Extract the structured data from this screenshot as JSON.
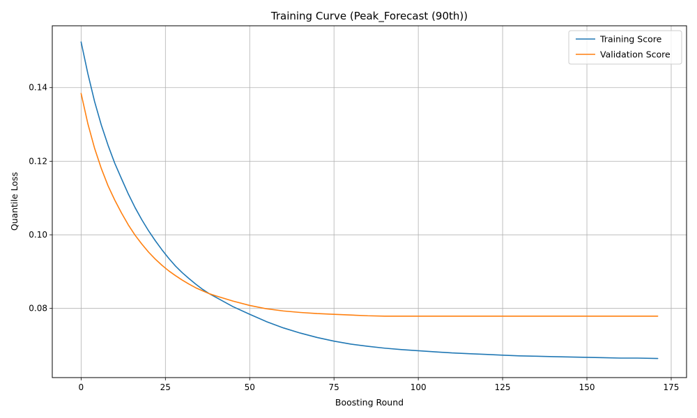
{
  "chart_data": {
    "type": "line",
    "title": "Training Curve (Peak_Forecast (90th))",
    "xlabel": "Boosting Round",
    "ylabel": "Quantile Loss",
    "xlim": [
      -8.55,
      179.55
    ],
    "ylim": [
      0.0612,
      0.1568
    ],
    "xticks": [
      0,
      25,
      50,
      75,
      100,
      125,
      150,
      175
    ],
    "yticks": [
      0.08,
      0.1,
      0.12,
      0.14
    ],
    "xtick_labels": [
      "0",
      "25",
      "50",
      "75",
      "100",
      "125",
      "150",
      "175"
    ],
    "ytick_labels": [
      "0.08",
      "0.10",
      "0.12",
      "0.14"
    ],
    "grid": true,
    "legend_position": "top-right",
    "series": [
      {
        "name": "Training Score",
        "color": "#1f77b4",
        "x": [
          0,
          2,
          4,
          6,
          8,
          10,
          12,
          14,
          16,
          18,
          20,
          22,
          24,
          26,
          28,
          30,
          32,
          34,
          36,
          38,
          40,
          45,
          50,
          55,
          60,
          65,
          70,
          75,
          80,
          85,
          90,
          95,
          100,
          105,
          110,
          115,
          120,
          125,
          130,
          135,
          140,
          145,
          150,
          155,
          160,
          165,
          171
        ],
        "y": [
          0.1524,
          0.1438,
          0.1362,
          0.1298,
          0.1243,
          0.1194,
          0.1152,
          0.1111,
          0.1074,
          0.1041,
          0.1011,
          0.0984,
          0.0959,
          0.0936,
          0.0915,
          0.0897,
          0.0881,
          0.0866,
          0.0852,
          0.084,
          0.083,
          0.0805,
          0.0784,
          0.0764,
          0.0747,
          0.0733,
          0.0721,
          0.0711,
          0.0703,
          0.0697,
          0.0692,
          0.0688,
          0.0685,
          0.0682,
          0.0679,
          0.0677,
          0.0675,
          0.0673,
          0.0671,
          0.067,
          0.0669,
          0.0668,
          0.0667,
          0.0666,
          0.0665,
          0.0665,
          0.0664
        ]
      },
      {
        "name": "Validation Score",
        "color": "#ff7f0e",
        "x": [
          0,
          2,
          4,
          6,
          8,
          10,
          12,
          14,
          16,
          18,
          20,
          22,
          24,
          26,
          28,
          30,
          32,
          34,
          36,
          38,
          40,
          45,
          50,
          55,
          60,
          65,
          70,
          75,
          80,
          85,
          90,
          95,
          100,
          105,
          110,
          115,
          120,
          125,
          130,
          135,
          140,
          145,
          150,
          155,
          160,
          165,
          171
        ],
        "y": [
          0.1384,
          0.1302,
          0.1235,
          0.118,
          0.1133,
          0.1094,
          0.1059,
          0.1027,
          0.0999,
          0.0975,
          0.0953,
          0.0934,
          0.0917,
          0.0902,
          0.0889,
          0.0877,
          0.0866,
          0.0856,
          0.0848,
          0.084,
          0.0834,
          0.082,
          0.0808,
          0.0799,
          0.0793,
          0.0789,
          0.0786,
          0.0784,
          0.0782,
          0.078,
          0.0779,
          0.0779,
          0.0779,
          0.0779,
          0.0779,
          0.0779,
          0.0779,
          0.0779,
          0.0779,
          0.0779,
          0.0779,
          0.0779,
          0.0779,
          0.0779,
          0.0779,
          0.0779,
          0.0779
        ]
      }
    ]
  }
}
